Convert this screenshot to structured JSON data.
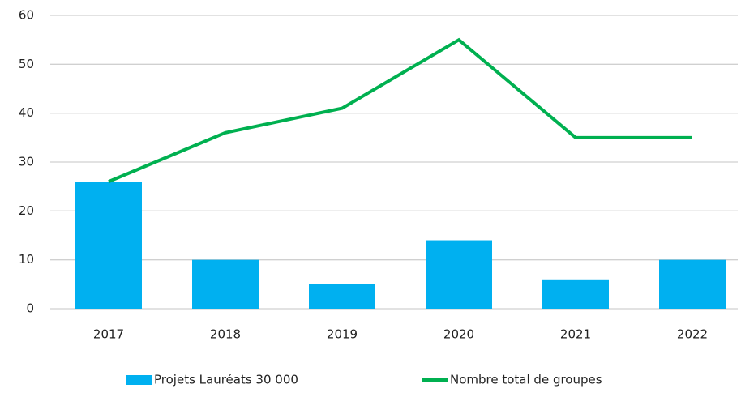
{
  "chart_data": {
    "type": "combo",
    "categories": [
      "2017",
      "2018",
      "2019",
      "2020",
      "2021",
      "2022"
    ],
    "series": [
      {
        "name": "Projets Lauréats 30 000",
        "type": "bar",
        "color": "#00b0f0",
        "values": [
          26,
          10,
          5,
          14,
          6,
          10
        ]
      },
      {
        "name": "Nombre total de groupes",
        "type": "line",
        "color": "#00b050",
        "values": [
          26,
          36,
          41,
          55,
          35,
          35
        ]
      }
    ],
    "ylim": [
      0,
      60
    ],
    "yticks": [
      0,
      10,
      20,
      30,
      40,
      50,
      60
    ],
    "grid": true,
    "legend": "bottom"
  }
}
